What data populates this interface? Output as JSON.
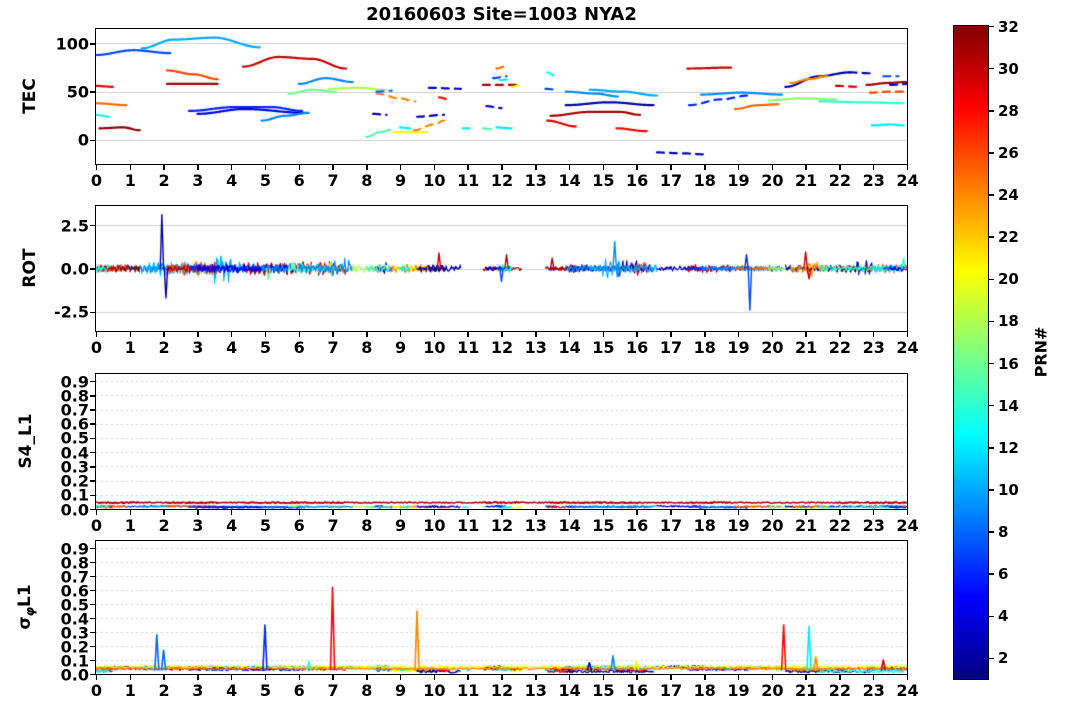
{
  "title": "20160603 Site=1003 NYA2",
  "chart_data": {
    "type": "line",
    "x_range": [
      0,
      24
    ],
    "x_ticks": [
      0,
      1,
      2,
      3,
      4,
      5,
      6,
      7,
      8,
      9,
      10,
      11,
      12,
      13,
      14,
      15,
      16,
      17,
      18,
      19,
      20,
      21,
      22,
      23,
      24
    ],
    "colormap": {
      "stops": [
        [
          0,
          "#000080"
        ],
        [
          0.125,
          "#0000ff"
        ],
        [
          0.375,
          "#00ffff"
        ],
        [
          0.625,
          "#ffff00"
        ],
        [
          0.875,
          "#ff0000"
        ],
        [
          1,
          "#800000"
        ]
      ]
    },
    "colorbar": {
      "label": "PRN#",
      "range": [
        1,
        32
      ],
      "ticks": [
        2,
        4,
        6,
        8,
        10,
        12,
        14,
        16,
        18,
        20,
        22,
        24,
        26,
        28,
        30,
        32
      ]
    },
    "panels": [
      {
        "key": "tec",
        "ylabel": "TEC",
        "ylim": [
          -25,
          115
        ],
        "yticks": [
          [
            0,
            "0"
          ],
          [
            50,
            "50"
          ],
          [
            100,
            "100"
          ]
        ],
        "grid": "solid"
      },
      {
        "key": "rot",
        "ylabel": "ROT",
        "ylim": [
          -3.6,
          3.6
        ],
        "yticks": [
          [
            -2.5,
            "-2.5"
          ],
          [
            0,
            "0.0"
          ],
          [
            2.5,
            "2.5"
          ]
        ],
        "grid": "solid"
      },
      {
        "key": "s4",
        "ylabel": "S4_L1",
        "ylim": [
          0,
          0.95
        ],
        "yticks": [
          [
            0,
            "0.0"
          ],
          [
            0.1,
            "0.1"
          ],
          [
            0.2,
            "0.2"
          ],
          [
            0.3,
            "0.3"
          ],
          [
            0.4,
            "0.4"
          ],
          [
            0.5,
            "0.5"
          ],
          [
            0.6,
            "0.6"
          ],
          [
            0.7,
            "0.7"
          ],
          [
            0.8,
            "0.8"
          ],
          [
            0.9,
            "0.9"
          ]
        ],
        "grid": "dotted"
      },
      {
        "key": "sig",
        "ylabel_parts": [
          "σ",
          "φ",
          "L1"
        ],
        "ylim": [
          0,
          0.95
        ],
        "yticks": [
          [
            0,
            "0.0"
          ],
          [
            0.1,
            "0.1"
          ],
          [
            0.2,
            "0.2"
          ],
          [
            0.3,
            "0.3"
          ],
          [
            0.4,
            "0.4"
          ],
          [
            0.5,
            "0.5"
          ],
          [
            0.6,
            "0.6"
          ],
          [
            0.7,
            "0.7"
          ],
          [
            0.8,
            "0.8"
          ],
          [
            0.9,
            "0.9"
          ]
        ],
        "grid": "dotted"
      }
    ],
    "tec_arcs": [
      {
        "prn": 7,
        "pts": [
          [
            0,
            88
          ],
          [
            1.1,
            93
          ],
          [
            2.2,
            90
          ]
        ]
      },
      {
        "prn": 10,
        "pts": [
          [
            1.35,
            95
          ],
          [
            2.3,
            104
          ],
          [
            3.5,
            106
          ],
          [
            4.85,
            96
          ]
        ]
      },
      {
        "prn": 26,
        "pts": [
          [
            2.1,
            72
          ],
          [
            2.9,
            68
          ],
          [
            3.6,
            63
          ]
        ]
      },
      {
        "prn": 31,
        "pts": [
          [
            2.1,
            58
          ],
          [
            3.6,
            58
          ]
        ]
      },
      {
        "prn": 30,
        "pts": [
          [
            4.35,
            76
          ],
          [
            5.4,
            86
          ],
          [
            6.4,
            84
          ],
          [
            7.4,
            74
          ]
        ]
      },
      {
        "prn": 25,
        "pts": [
          [
            0,
            38
          ],
          [
            0.9,
            36
          ]
        ]
      },
      {
        "prn": 32,
        "pts": [
          [
            0.1,
            12
          ],
          [
            0.8,
            13
          ],
          [
            1.3,
            10
          ]
        ]
      },
      {
        "prn": 29,
        "pts": [
          [
            0,
            56
          ],
          [
            0.5,
            55
          ]
        ]
      },
      {
        "prn": 13,
        "pts": [
          [
            0,
            26
          ],
          [
            0.4,
            24
          ]
        ]
      },
      {
        "prn": 6,
        "pts": [
          [
            2.75,
            30
          ],
          [
            4.1,
            34
          ],
          [
            5.2,
            34
          ],
          [
            6.1,
            30
          ]
        ]
      },
      {
        "prn": 4,
        "pts": [
          [
            3.0,
            27
          ],
          [
            4.4,
            32
          ],
          [
            6.2,
            28
          ]
        ]
      },
      {
        "prn": 9,
        "pts": [
          [
            4.9,
            20
          ],
          [
            5.6,
            25
          ],
          [
            6.3,
            28
          ]
        ]
      },
      {
        "prn": 16,
        "pts": [
          [
            5.7,
            48
          ],
          [
            6.4,
            52
          ],
          [
            7.1,
            50
          ]
        ]
      },
      {
        "prn": 18,
        "pts": [
          [
            6.9,
            53
          ],
          [
            7.8,
            54
          ],
          [
            8.55,
            52
          ]
        ]
      },
      {
        "prn": 9,
        "pts": [
          [
            6.0,
            58
          ],
          [
            6.8,
            64
          ],
          [
            7.6,
            60
          ]
        ]
      },
      {
        "prn": 24,
        "dash": 1,
        "pts": [
          [
            8.3,
            48
          ],
          [
            9.0,
            43
          ],
          [
            9.45,
            40
          ]
        ]
      },
      {
        "prn": 8,
        "dash": 1,
        "pts": [
          [
            8.3,
            50
          ],
          [
            8.75,
            51
          ]
        ]
      },
      {
        "prn": 3,
        "dash": 1,
        "pts": [
          [
            8.2,
            27
          ],
          [
            8.6,
            26
          ]
        ]
      },
      {
        "prn": 15,
        "pts": [
          [
            8.0,
            3
          ],
          [
            8.4,
            8
          ],
          [
            8.7,
            10
          ]
        ]
      },
      {
        "prn": 20,
        "pts": [
          [
            8.8,
            8
          ],
          [
            9.8,
            8
          ]
        ]
      },
      {
        "prn": 24,
        "dash": 1,
        "pts": [
          [
            9.4,
            10
          ],
          [
            10.0,
            16
          ],
          [
            10.3,
            20
          ]
        ]
      },
      {
        "prn": 2,
        "dash": 1,
        "pts": [
          [
            9.5,
            24
          ],
          [
            10.3,
            26
          ]
        ]
      },
      {
        "prn": 12,
        "pts": [
          [
            9.0,
            13
          ],
          [
            9.3,
            12
          ]
        ]
      },
      {
        "prn": 2,
        "dash": 1,
        "pts": [
          [
            9.85,
            54
          ],
          [
            10.8,
            53
          ]
        ]
      },
      {
        "prn": 28,
        "dash": 1,
        "pts": [
          [
            10.15,
            44
          ],
          [
            10.45,
            42
          ]
        ]
      },
      {
        "prn": 12,
        "pts": [
          [
            10.85,
            12
          ],
          [
            11.05,
            12
          ]
        ]
      },
      {
        "prn": 25,
        "dash": 1,
        "pts": [
          [
            11.85,
            74
          ],
          [
            12.1,
            76
          ]
        ]
      },
      {
        "prn": 7,
        "dash": 1,
        "pts": [
          [
            11.75,
            64
          ],
          [
            12.15,
            66
          ]
        ]
      },
      {
        "prn": 31,
        "dash": 1,
        "pts": [
          [
            11.45,
            57
          ],
          [
            12.6,
            57
          ]
        ]
      },
      {
        "prn": 12,
        "dash": 1,
        "pts": [
          [
            11.95,
            62
          ],
          [
            12.25,
            63
          ]
        ]
      },
      {
        "prn": 15,
        "pts": [
          [
            11.45,
            12
          ],
          [
            11.7,
            11
          ]
        ]
      },
      {
        "prn": 12,
        "pts": [
          [
            11.85,
            13
          ],
          [
            12.3,
            12
          ]
        ]
      },
      {
        "prn": 3,
        "dash": 1,
        "pts": [
          [
            11.55,
            35
          ],
          [
            12.0,
            33
          ]
        ]
      },
      {
        "prn": 20,
        "dash": 1,
        "pts": [
          [
            12.3,
            55
          ],
          [
            12.6,
            57
          ]
        ]
      },
      {
        "prn": 13,
        "dash": 1,
        "pts": [
          [
            13.35,
            70
          ],
          [
            13.6,
            66
          ]
        ]
      },
      {
        "prn": 7,
        "dash": 1,
        "pts": [
          [
            13.3,
            53
          ],
          [
            13.65,
            52
          ]
        ]
      },
      {
        "prn": 29,
        "pts": [
          [
            13.35,
            20
          ],
          [
            14.2,
            14
          ]
        ]
      },
      {
        "prn": 31,
        "pts": [
          [
            13.45,
            25
          ],
          [
            14.6,
            29
          ],
          [
            15.5,
            29
          ],
          [
            16.1,
            26
          ]
        ]
      },
      {
        "prn": 28,
        "pts": [
          [
            15.4,
            12
          ],
          [
            16.3,
            9
          ]
        ]
      },
      {
        "prn": 2,
        "pts": [
          [
            13.9,
            36
          ],
          [
            15.2,
            39
          ],
          [
            16.5,
            36
          ]
        ]
      },
      {
        "prn": 9,
        "pts": [
          [
            13.9,
            50
          ],
          [
            14.8,
            48
          ],
          [
            15.45,
            45
          ]
        ]
      },
      {
        "prn": 10,
        "pts": [
          [
            14.6,
            52
          ],
          [
            15.6,
            50
          ],
          [
            16.6,
            46
          ]
        ]
      },
      {
        "prn": 3,
        "dash": 1,
        "pts": [
          [
            16.6,
            -13
          ],
          [
            17.4,
            -14
          ],
          [
            18.0,
            -15
          ]
        ]
      },
      {
        "prn": 30,
        "pts": [
          [
            17.5,
            74
          ],
          [
            18.8,
            75
          ]
        ]
      },
      {
        "prn": 6,
        "dash": 1,
        "pts": [
          [
            17.55,
            36
          ],
          [
            18.5,
            42
          ],
          [
            19.3,
            46
          ]
        ]
      },
      {
        "prn": 9,
        "pts": [
          [
            17.9,
            47
          ],
          [
            19.1,
            49
          ],
          [
            20.3,
            47
          ]
        ]
      },
      {
        "prn": 25,
        "pts": [
          [
            18.9,
            32
          ],
          [
            19.6,
            36
          ],
          [
            20.2,
            37
          ]
        ]
      },
      {
        "prn": 17,
        "pts": [
          [
            19.9,
            41
          ],
          [
            20.9,
            43
          ],
          [
            21.9,
            42
          ]
        ]
      },
      {
        "prn": 2,
        "pts": [
          [
            20.4,
            55
          ],
          [
            21.4,
            66
          ],
          [
            22.3,
            70
          ]
        ]
      },
      {
        "prn": 2,
        "dash": 1,
        "pts": [
          [
            22.3,
            70
          ],
          [
            23.0,
            69
          ]
        ]
      },
      {
        "prn": 24,
        "pts": [
          [
            20.55,
            59
          ],
          [
            21.1,
            63
          ],
          [
            21.65,
            66
          ]
        ]
      },
      {
        "prn": 30,
        "dash": 1,
        "pts": [
          [
            21.9,
            56
          ],
          [
            22.6,
            55
          ]
        ]
      },
      {
        "prn": 31,
        "pts": [
          [
            22.8,
            57
          ],
          [
            23.4,
            59
          ],
          [
            24,
            60
          ]
        ]
      },
      {
        "prn": 26,
        "dash": 1,
        "pts": [
          [
            22.9,
            49
          ],
          [
            23.5,
            50
          ],
          [
            24,
            50
          ]
        ]
      },
      {
        "prn": 14,
        "pts": [
          [
            21.4,
            40
          ],
          [
            22.6,
            39
          ],
          [
            23.9,
            38
          ]
        ]
      },
      {
        "prn": 12,
        "pts": [
          [
            22.95,
            15
          ],
          [
            23.5,
            16
          ],
          [
            23.9,
            15
          ]
        ]
      },
      {
        "prn": 7,
        "dash": 1,
        "pts": [
          [
            23.3,
            66
          ],
          [
            23.75,
            66
          ]
        ]
      },
      {
        "prn": 4,
        "dash": 1,
        "pts": [
          [
            23.5,
            57
          ],
          [
            24,
            58
          ]
        ]
      }
    ],
    "rot": {
      "spikes": [
        {
          "prn": 2,
          "t": 1.95,
          "v": 3.1
        },
        {
          "prn": 2,
          "t": 2.07,
          "v": -1.7
        },
        {
          "prn": 16,
          "t": 5.1,
          "v": -0.6
        },
        {
          "prn": 30,
          "t": 10.15,
          "v": 0.9
        },
        {
          "prn": 7,
          "t": 12.0,
          "v": -0.75
        },
        {
          "prn": 31,
          "t": 12.15,
          "v": 0.8
        },
        {
          "prn": 31,
          "t": 13.5,
          "v": 0.6
        },
        {
          "prn": 9,
          "t": 15.35,
          "v": 1.55
        },
        {
          "prn": 9,
          "t": 15.45,
          "v": -0.5
        },
        {
          "prn": 6,
          "t": 19.25,
          "v": 0.8
        },
        {
          "prn": 7,
          "t": 19.35,
          "v": -2.4
        },
        {
          "prn": 30,
          "t": 21.0,
          "v": 0.95
        },
        {
          "prn": 30,
          "t": 21.1,
          "v": -0.6
        },
        {
          "prn": 14,
          "t": 23.9,
          "v": 0.6
        }
      ]
    },
    "s4": {
      "lines": [
        {
          "prn": 31,
          "v": 0.045
        }
      ]
    },
    "sig": {
      "lines": [
        {
          "prn": 20,
          "v": 0.05
        },
        {
          "prn": 24,
          "v": 0.038
        }
      ],
      "spikes": [
        {
          "prn": 8,
          "t": 1.8,
          "v": 0.28
        },
        {
          "prn": 8,
          "t": 2.0,
          "v": 0.17
        },
        {
          "prn": 6,
          "t": 5.0,
          "v": 0.35
        },
        {
          "prn": 28,
          "t": 7.0,
          "v": 0.62
        },
        {
          "prn": 24,
          "t": 9.5,
          "v": 0.45
        },
        {
          "prn": 9,
          "t": 15.3,
          "v": 0.13
        },
        {
          "prn": 20,
          "t": 16.0,
          "v": 0.09
        },
        {
          "prn": 28,
          "t": 20.35,
          "v": 0.35
        },
        {
          "prn": 12,
          "t": 21.1,
          "v": 0.34
        },
        {
          "prn": 24,
          "t": 21.3,
          "v": 0.12
        },
        {
          "prn": 30,
          "t": 23.3,
          "v": 0.1
        },
        {
          "prn": 14,
          "t": 6.3,
          "v": 0.09
        },
        {
          "prn": 2,
          "t": 14.6,
          "v": 0.08
        }
      ]
    }
  }
}
